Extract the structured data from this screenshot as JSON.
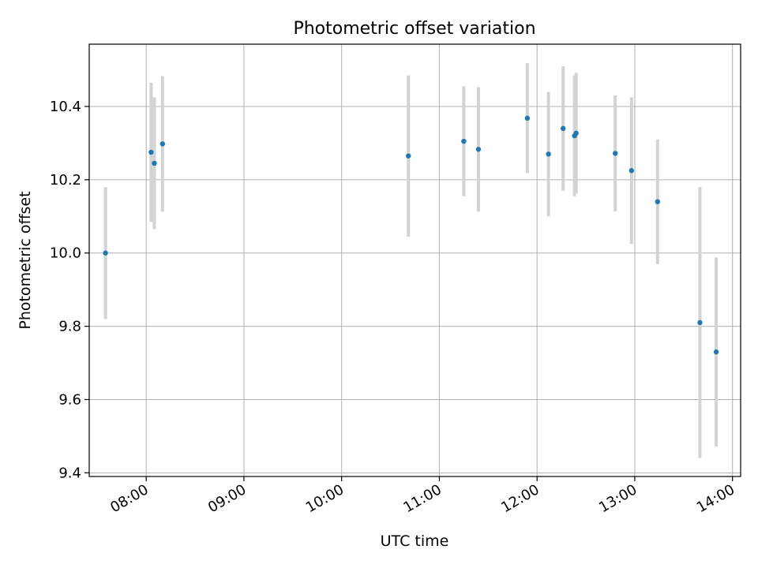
{
  "chart_data": {
    "type": "scatter",
    "title": "Photometric offset variation",
    "xlabel": "UTC time",
    "ylabel": "Photometric offset",
    "x_axis_type": "time",
    "xlim": [
      "07:25",
      "14:05"
    ],
    "ylim": [
      9.39,
      10.57
    ],
    "x_ticks": [
      "08:00",
      "09:00",
      "10:00",
      "11:00",
      "12:00",
      "13:00",
      "14:00"
    ],
    "y_ticks": [
      9.4,
      9.6,
      9.8,
      10.0,
      10.2,
      10.4
    ],
    "y_tick_labels": [
      "9.4",
      "9.6",
      "9.8",
      "10.0",
      "10.2",
      "10.4"
    ],
    "grid": true,
    "colors": {
      "marker": "#1f77b4",
      "errorbar": "#d3d3d3",
      "grid": "#b0b0b0"
    },
    "points": [
      {
        "x": "07:35",
        "y": 10.0,
        "err": 0.18
      },
      {
        "x": "08:03",
        "y": 10.275,
        "err": 0.19
      },
      {
        "x": "08:05",
        "y": 10.245,
        "err": 0.18
      },
      {
        "x": "08:10",
        "y": 10.298,
        "err": 0.185
      },
      {
        "x": "10:41",
        "y": 10.265,
        "err": 0.22
      },
      {
        "x": "11:15",
        "y": 10.305,
        "err": 0.15
      },
      {
        "x": "11:24",
        "y": 10.283,
        "err": 0.17
      },
      {
        "x": "11:54",
        "y": 10.368,
        "err": 0.15
      },
      {
        "x": "12:07",
        "y": 10.27,
        "err": 0.17
      },
      {
        "x": "12:16",
        "y": 10.34,
        "err": 0.17
      },
      {
        "x": "12:23",
        "y": 10.32,
        "err": 0.165
      },
      {
        "x": "12:24",
        "y": 10.327,
        "err": 0.165
      },
      {
        "x": "12:48",
        "y": 10.272,
        "err": 0.158
      },
      {
        "x": "12:58",
        "y": 10.225,
        "err": 0.2
      },
      {
        "x": "13:14",
        "y": 10.14,
        "err": 0.17
      },
      {
        "x": "13:40",
        "y": 9.81,
        "err": 0.37
      },
      {
        "x": "13:50",
        "y": 9.73,
        "err": 0.258
      }
    ]
  }
}
